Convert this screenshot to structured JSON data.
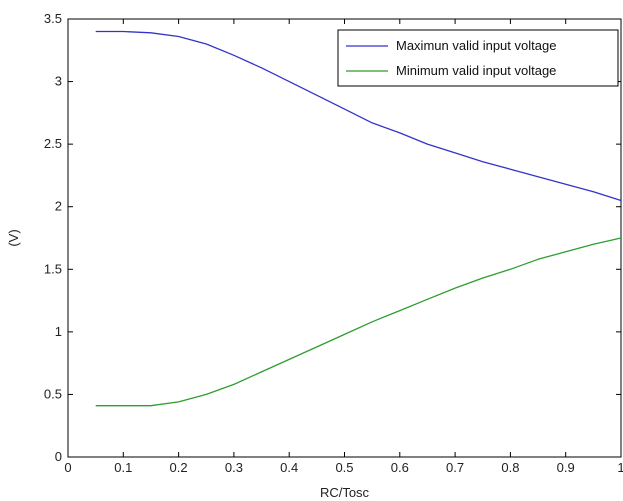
{
  "chart_data": {
    "type": "line",
    "title": "",
    "xlabel": "RC/Tosc",
    "ylabel": "(V)",
    "xlim": [
      0,
      1
    ],
    "ylim": [
      0,
      3.5
    ],
    "x_ticks": [
      "0",
      "0.1",
      "0.2",
      "0.3",
      "0.4",
      "0.5",
      "0.6",
      "0.7",
      "0.8",
      "0.9",
      "1"
    ],
    "y_ticks": [
      "0",
      "0.5",
      "1",
      "1.5",
      "2",
      "2.5",
      "3",
      "3.5"
    ],
    "grid": false,
    "legend_position": "top-right",
    "series": [
      {
        "name": "Maximun valid input voltage",
        "color": "#3333cc",
        "x": [
          0.05,
          0.1,
          0.15,
          0.2,
          0.25,
          0.3,
          0.35,
          0.4,
          0.45,
          0.5,
          0.55,
          0.6,
          0.65,
          0.7,
          0.75,
          0.8,
          0.85,
          0.9,
          0.95,
          1.0
        ],
        "y": [
          3.4,
          3.4,
          3.39,
          3.36,
          3.3,
          3.21,
          3.11,
          3.0,
          2.89,
          2.78,
          2.67,
          2.59,
          2.5,
          2.43,
          2.36,
          2.3,
          2.24,
          2.18,
          2.12,
          2.05
        ]
      },
      {
        "name": "Minimum valid input voltage",
        "color": "#2e9e2e",
        "x": [
          0.05,
          0.1,
          0.15,
          0.2,
          0.25,
          0.3,
          0.35,
          0.4,
          0.45,
          0.5,
          0.55,
          0.6,
          0.65,
          0.7,
          0.75,
          0.8,
          0.85,
          0.9,
          0.95,
          1.0
        ],
        "y": [
          0.41,
          0.41,
          0.41,
          0.44,
          0.5,
          0.58,
          0.68,
          0.78,
          0.88,
          0.98,
          1.08,
          1.17,
          1.26,
          1.35,
          1.43,
          1.5,
          1.58,
          1.64,
          1.7,
          1.75
        ]
      }
    ]
  }
}
